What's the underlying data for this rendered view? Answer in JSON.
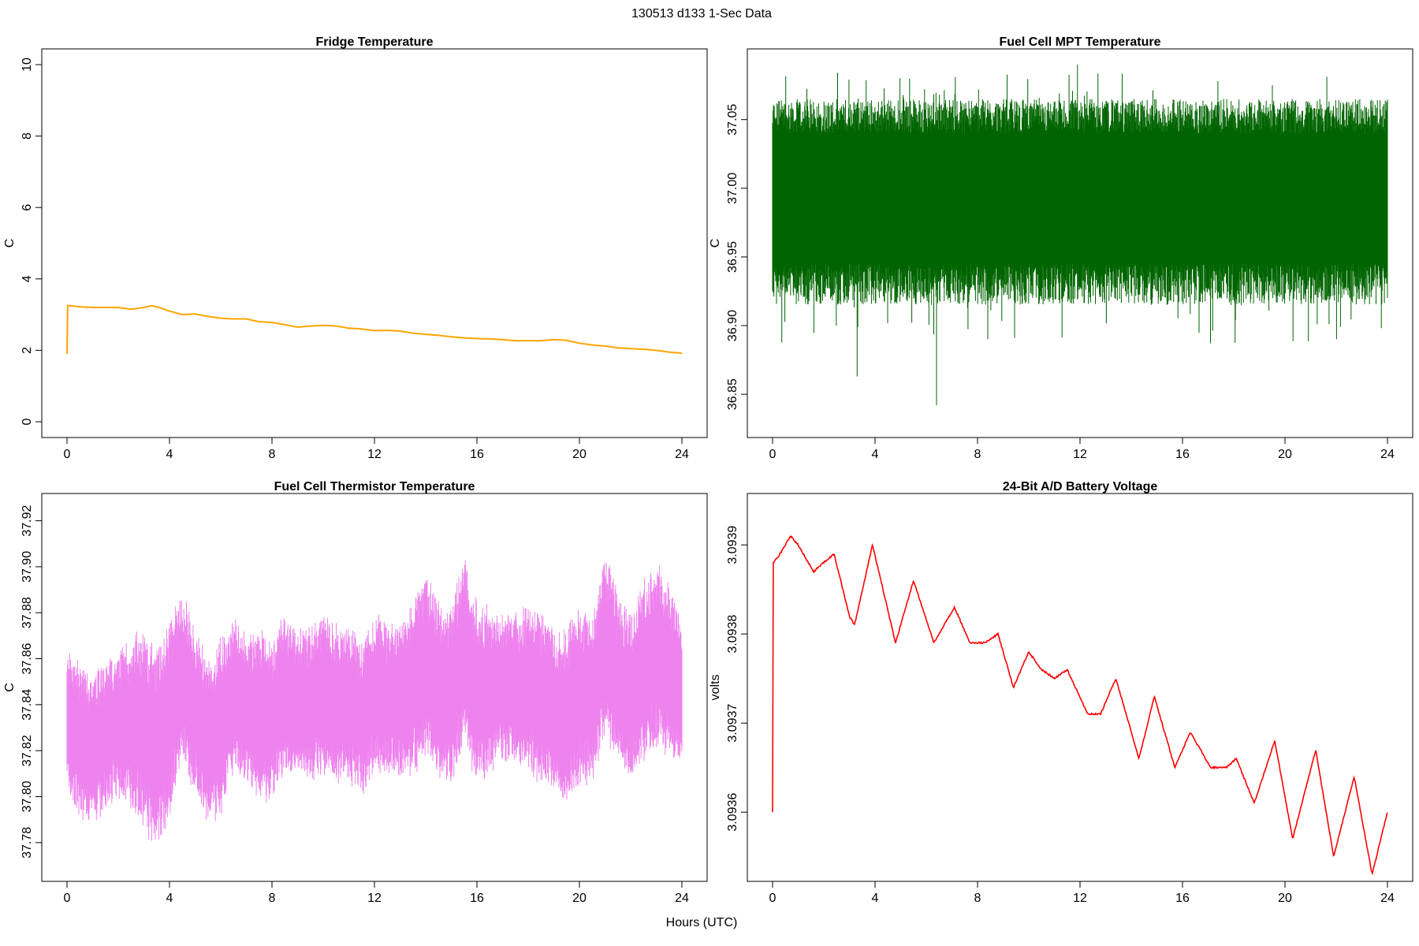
{
  "figure": {
    "suptitle": "130513   d133   1-Sec Data",
    "xlabel": "Hours (UTC)"
  },
  "chart_data": [
    {
      "type": "line",
      "title": "Fridge Temperature",
      "xlabel": "Hours (UTC)",
      "ylabel": "C",
      "xlim": [
        0,
        24
      ],
      "ylim": [
        0,
        10
      ],
      "xticks": [
        0,
        4,
        8,
        12,
        16,
        20,
        24
      ],
      "yticks": [
        0,
        2,
        4,
        6,
        8,
        10
      ],
      "ytick_labels": [
        "0",
        "2",
        "4",
        "6",
        "8",
        "10"
      ],
      "color": "#FFA500",
      "series": [
        {
          "x": [
            0,
            0.02,
            0.1,
            0.5,
            1,
            1.5,
            2,
            2.5,
            3,
            3.3,
            3.6,
            4,
            4.5,
            5,
            5.5,
            6,
            6.5,
            7,
            7.5,
            8,
            8.5,
            9,
            9.5,
            10,
            10.5,
            11,
            11.5,
            12,
            12.5,
            13,
            13.5,
            14,
            14.5,
            15,
            15.5,
            16,
            16.5,
            17,
            17.5,
            18,
            18.5,
            19,
            19.5,
            20,
            20.5,
            21,
            21.5,
            22,
            22.5,
            23,
            23.5,
            24
          ],
          "y": [
            1.9,
            3.25,
            3.25,
            3.22,
            3.2,
            3.2,
            3.2,
            3.15,
            3.2,
            3.25,
            3.2,
            3.1,
            3.0,
            3.02,
            2.95,
            2.9,
            2.88,
            2.88,
            2.8,
            2.78,
            2.72,
            2.65,
            2.68,
            2.7,
            2.68,
            2.62,
            2.6,
            2.55,
            2.56,
            2.54,
            2.48,
            2.45,
            2.42,
            2.38,
            2.35,
            2.33,
            2.32,
            2.3,
            2.27,
            2.27,
            2.27,
            2.3,
            2.28,
            2.2,
            2.15,
            2.12,
            2.07,
            2.05,
            2.03,
            2.0,
            1.95,
            1.92
          ]
        }
      ]
    },
    {
      "type": "line",
      "title": "Fuel Cell MPT Temperature",
      "xlabel": "Hours (UTC)",
      "ylabel": "C",
      "xlim": [
        0,
        24
      ],
      "ylim": [
        36.83,
        37.09
      ],
      "xticks": [
        0,
        4,
        8,
        12,
        16,
        20,
        24
      ],
      "yticks": [
        36.85,
        36.9,
        36.95,
        37.0,
        37.05
      ],
      "ytick_labels": [
        "36.85",
        "36.90",
        "36.95",
        "37.00",
        "37.05"
      ],
      "color": "#006400",
      "series": [
        {
          "x": [
            0,
            4,
            8,
            12,
            16,
            20,
            24
          ],
          "y_center": [
            36.995,
            36.995,
            36.995,
            36.995,
            36.995,
            36.995,
            36.995
          ],
          "y_dense_low": [
            36.945,
            36.945,
            36.945,
            36.945,
            36.945,
            36.945,
            36.945
          ],
          "y_dense_high": [
            37.04,
            37.04,
            37.04,
            37.04,
            37.04,
            37.04,
            37.04
          ],
          "y_min_outlier": 36.842,
          "y_max_outlier": 37.09
        }
      ]
    },
    {
      "type": "line",
      "title": "Fuel Cell Thermistor Temperature",
      "xlabel": "Hours (UTC)",
      "ylabel": "C",
      "xlim": [
        0,
        24
      ],
      "ylim": [
        37.77,
        37.925
      ],
      "xticks": [
        0,
        4,
        8,
        12,
        16,
        20,
        24
      ],
      "yticks": [
        37.78,
        37.8,
        37.82,
        37.84,
        37.86,
        37.88,
        37.9,
        37.92
      ],
      "ytick_labels": [
        "37.78",
        "37.80",
        "37.82",
        "37.84",
        "37.86",
        "37.88",
        "37.90",
        "37.92"
      ],
      "color": "#EE82EE",
      "series": [
        {
          "x": [
            0,
            0.5,
            1,
            1.5,
            2,
            2.5,
            3,
            3.5,
            4,
            4.5,
            5,
            5.5,
            6,
            6.5,
            7,
            7.5,
            8,
            8.5,
            9,
            9.5,
            10,
            10.5,
            11,
            11.5,
            12,
            12.5,
            13,
            13.5,
            14,
            14.5,
            15,
            15.5,
            16,
            16.5,
            17,
            17.5,
            18,
            18.5,
            19,
            19.5,
            20,
            20.5,
            21,
            21.5,
            22,
            22.5,
            23,
            23.5,
            24
          ],
          "y_low": [
            37.805,
            37.795,
            37.79,
            37.8,
            37.805,
            37.8,
            37.79,
            37.78,
            37.795,
            37.82,
            37.805,
            37.79,
            37.795,
            37.815,
            37.81,
            37.8,
            37.805,
            37.815,
            37.81,
            37.81,
            37.815,
            37.81,
            37.81,
            37.805,
            37.815,
            37.815,
            37.81,
            37.815,
            37.82,
            37.81,
            37.81,
            37.825,
            37.81,
            37.815,
            37.82,
            37.82,
            37.815,
            37.81,
            37.805,
            37.8,
            37.81,
            37.81,
            37.83,
            37.82,
            37.81,
            37.82,
            37.825,
            37.82,
            37.82
          ],
          "y_high": [
            37.86,
            37.855,
            37.85,
            37.855,
            37.86,
            37.865,
            37.87,
            37.86,
            37.875,
            37.885,
            37.87,
            37.855,
            37.865,
            37.875,
            37.865,
            37.87,
            37.865,
            37.875,
            37.87,
            37.87,
            37.875,
            37.87,
            37.87,
            37.865,
            37.875,
            37.87,
            37.875,
            37.88,
            37.895,
            37.88,
            37.88,
            37.9,
            37.88,
            37.88,
            37.875,
            37.875,
            37.88,
            37.875,
            37.87,
            37.87,
            37.88,
            37.875,
            37.905,
            37.885,
            37.875,
            37.89,
            37.9,
            37.89,
            37.87
          ]
        }
      ]
    },
    {
      "type": "line",
      "title": "24-Bit A/D Battery Voltage",
      "xlabel": "Hours (UTC)",
      "ylabel": "volts",
      "xlim": [
        0,
        24
      ],
      "ylim": [
        3.09354,
        3.09394
      ],
      "xticks": [
        0,
        4,
        8,
        12,
        16,
        20,
        24
      ],
      "yticks": [
        3.0936,
        3.0937,
        3.0938,
        3.0939
      ],
      "ytick_labels": [
        "3.0936",
        "3.0937",
        "3.0938",
        "3.0939"
      ],
      "color": "#FF0000",
      "series": [
        {
          "x": [
            0,
            0.02,
            0.3,
            0.7,
            1,
            1.6,
            2,
            2.4,
            3,
            3.2,
            3.9,
            4.8,
            5.5,
            6.3,
            7.1,
            7.7,
            8.3,
            8.8,
            9.4,
            10,
            10.5,
            11,
            11.5,
            12.3,
            12.8,
            13.4,
            14.3,
            14.9,
            15.7,
            16.3,
            17.1,
            17.7,
            18.1,
            18.8,
            19.6,
            20.3,
            21.2,
            21.9,
            22.7,
            23.4,
            24
          ],
          "y": [
            3.0936,
            3.09388,
            3.09389,
            3.09391,
            3.0939,
            3.09387,
            3.09388,
            3.09389,
            3.09382,
            3.09381,
            3.0939,
            3.09379,
            3.09386,
            3.09379,
            3.09383,
            3.09379,
            3.09379,
            3.0938,
            3.09374,
            3.09378,
            3.09376,
            3.09375,
            3.09376,
            3.09371,
            3.09371,
            3.09375,
            3.09366,
            3.09373,
            3.09365,
            3.09369,
            3.09365,
            3.09365,
            3.09366,
            3.09361,
            3.09368,
            3.09357,
            3.09367,
            3.09355,
            3.09364,
            3.09353,
            3.0936
          ]
        }
      ]
    }
  ]
}
